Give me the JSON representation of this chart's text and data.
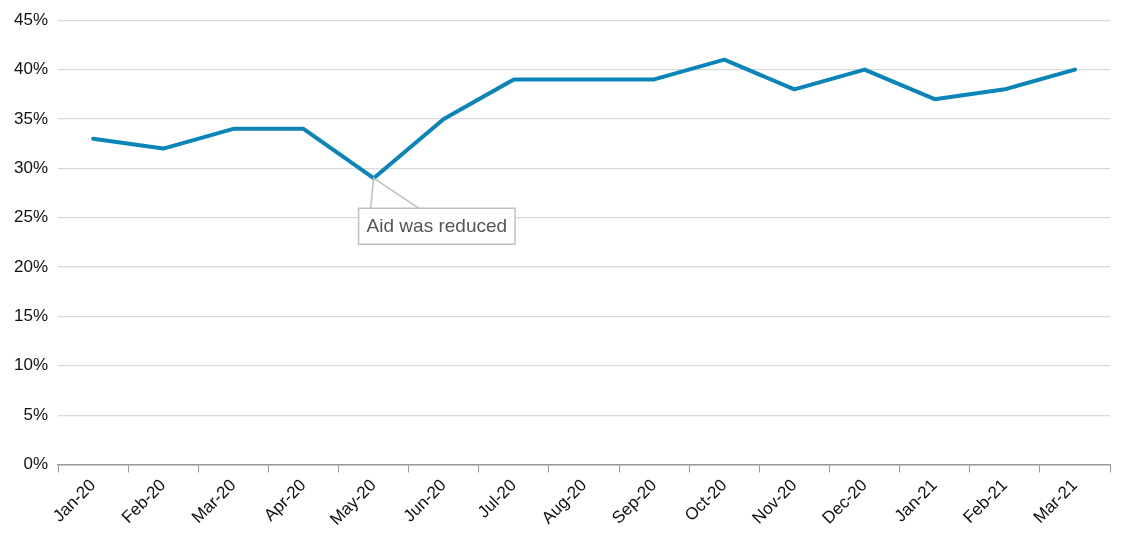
{
  "chart_data": {
    "type": "line",
    "categories": [
      "Jan-20",
      "Feb-20",
      "Mar-20",
      "Apr-20",
      "May-20",
      "Jun-20",
      "Jul-20",
      "Aug-20",
      "Sep-20",
      "Oct-20",
      "Nov-20",
      "Dec-20",
      "Jan-21",
      "Feb-21",
      "Mar-21"
    ],
    "series": [
      {
        "color": "#0b84b8",
        "values": [
          33,
          32,
          34,
          34,
          29,
          35,
          39,
          39,
          39,
          41,
          38,
          40,
          37,
          38,
          40
        ]
      }
    ],
    "ylim": [
      0,
      45
    ],
    "yticks": [
      {
        "value": 0,
        "label": "0%"
      },
      {
        "value": 5,
        "label": "5%"
      },
      {
        "value": 10,
        "label": "10%"
      },
      {
        "value": 15,
        "label": "15%"
      },
      {
        "value": 20,
        "label": "20%"
      },
      {
        "value": 25,
        "label": "25%"
      },
      {
        "value": 30,
        "label": "30%"
      },
      {
        "value": 35,
        "label": "35%"
      },
      {
        "value": 40,
        "label": "40%"
      },
      {
        "value": 45,
        "label": "45%"
      }
    ],
    "grid": "y",
    "legend": false,
    "marker": "none",
    "line_style": "solid",
    "annotations": [
      {
        "text": "Aid was reduced",
        "x": "May-20",
        "y": 29
      }
    ]
  }
}
